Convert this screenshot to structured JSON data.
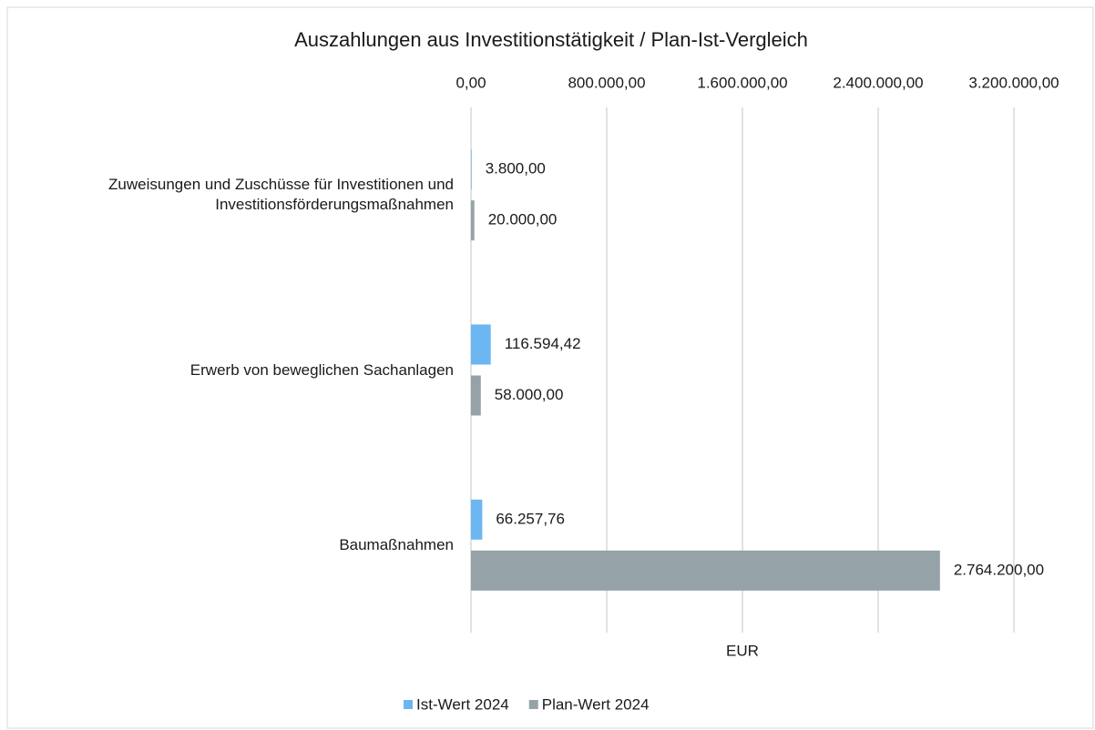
{
  "chart_data": {
    "type": "bar",
    "orientation": "horizontal",
    "title": "Auszahlungen aus Investitionstätigkeit / Plan-Ist-Vergleich",
    "x_label": "EUR",
    "categories": [
      "Zuweisungen und Zuschüsse für Investitionen und Investitionsförderungsmaßnahmen",
      "Erwerb von beweglichen Sachanlagen",
      "Baumaßnahmen"
    ],
    "series": [
      {
        "name": "Ist-Wert 2024",
        "color": "#6cb6f2",
        "values": [
          3800,
          116594.42,
          66257.76
        ],
        "value_labels": [
          "3.800,00",
          "116.594,42",
          "66.257,76"
        ]
      },
      {
        "name": "Plan-Wert 2024",
        "color": "#95a3a9",
        "values": [
          20000,
          58000,
          2764200
        ],
        "value_labels": [
          "20.000,00",
          "58.000,00",
          "2.764.200,00"
        ]
      }
    ],
    "xlim": [
      0,
      3200000
    ],
    "xticks": [
      {
        "value": 0,
        "label": "0,00"
      },
      {
        "value": 800000,
        "label": "800.000,00"
      },
      {
        "value": 1600000,
        "label": "1.600.000,00"
      },
      {
        "value": 2400000,
        "label": "2.400.000,00"
      },
      {
        "value": 3200000,
        "label": "3.200.000,00"
      }
    ],
    "grid": true,
    "legend": "bottom"
  }
}
